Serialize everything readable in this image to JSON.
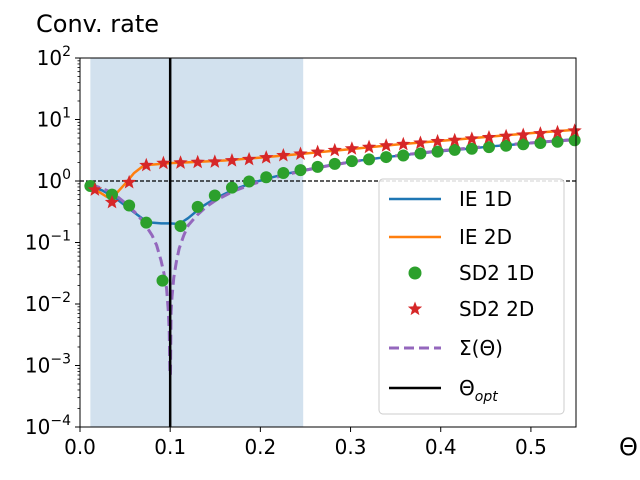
{
  "chart_data": {
    "type": "line",
    "title": "Conv. rate",
    "xlabel": "Θ",
    "ylabel": "",
    "xlim": [
      0.0,
      0.55
    ],
    "ylim": [
      0.0001,
      100
    ],
    "yscale": "log",
    "x_ticks": [
      {
        "value": 0.0,
        "label": "0.0"
      },
      {
        "value": 0.1,
        "label": "0.1"
      },
      {
        "value": 0.2,
        "label": "0.2"
      },
      {
        "value": 0.3,
        "label": "0.3"
      },
      {
        "value": 0.4,
        "label": "0.4"
      },
      {
        "value": 0.5,
        "label": "0.5"
      }
    ],
    "y_ticks": [
      {
        "value": 100,
        "base": "10",
        "exp": "2"
      },
      {
        "value": 10,
        "base": "10",
        "exp": "1"
      },
      {
        "value": 1,
        "base": "10",
        "exp": "0"
      },
      {
        "value": 0.1,
        "base": "10",
        "exp": "−1"
      },
      {
        "value": 0.01,
        "base": "10",
        "exp": "−2"
      },
      {
        "value": 0.001,
        "base": "10",
        "exp": "−3"
      },
      {
        "value": 0.0001,
        "base": "10",
        "exp": "−4"
      }
    ],
    "shaded_region": {
      "x_start": 0.0115,
      "x_end": 0.2475,
      "color": "#d2e1ee"
    },
    "reference_line_y": 1.0,
    "vertical_line_x": 0.1,
    "series": [
      {
        "name": "IE 1D",
        "kind": "line",
        "color": "#1f77b4",
        "x": [
          0.0115,
          0.025,
          0.04,
          0.055,
          0.07,
          0.08,
          0.09,
          0.1,
          0.11,
          0.12,
          0.135,
          0.15,
          0.17,
          0.19,
          0.21,
          0.23,
          0.25,
          0.28,
          0.31,
          0.34,
          0.37,
          0.4,
          0.43,
          0.46,
          0.49,
          0.52,
          0.55
        ],
        "y": [
          0.83,
          0.7,
          0.52,
          0.35,
          0.24,
          0.21,
          0.205,
          0.205,
          0.2,
          0.25,
          0.38,
          0.52,
          0.72,
          0.92,
          1.12,
          1.32,
          1.52,
          1.85,
          2.15,
          2.45,
          2.75,
          3.05,
          3.35,
          3.7,
          4.0,
          4.4,
          4.8
        ]
      },
      {
        "name": "IE 2D",
        "kind": "line",
        "color": "#ff7f0e",
        "x": [
          0.0115,
          0.02,
          0.03,
          0.04,
          0.05,
          0.06,
          0.07,
          0.08,
          0.1,
          0.13,
          0.16,
          0.2,
          0.25,
          0.3,
          0.35,
          0.4,
          0.45,
          0.5,
          0.55
        ],
        "y": [
          0.8,
          0.68,
          0.55,
          0.62,
          0.9,
          1.35,
          1.75,
          1.85,
          1.95,
          2.05,
          2.15,
          2.4,
          2.8,
          3.3,
          3.9,
          4.5,
          5.2,
          6.0,
          6.8
        ]
      },
      {
        "name": "SD2 1D",
        "kind": "markers",
        "marker": "circle",
        "color": "#2ca02c",
        "x": [
          0.0115,
          0.0355,
          0.0545,
          0.0735,
          0.0915,
          0.1115,
          0.1305,
          0.1495,
          0.1685,
          0.1875,
          0.2065,
          0.2255,
          0.2445,
          0.2635,
          0.2825,
          0.3015,
          0.3205,
          0.3395,
          0.3585,
          0.3775,
          0.3965,
          0.4155,
          0.4345,
          0.4535,
          0.4725,
          0.4915,
          0.5105,
          0.5295,
          0.5485
        ],
        "y": [
          0.83,
          0.6,
          0.4,
          0.21,
          0.024,
          0.185,
          0.38,
          0.58,
          0.78,
          0.98,
          1.15,
          1.35,
          1.5,
          1.7,
          1.9,
          2.1,
          2.25,
          2.45,
          2.6,
          2.8,
          3.0,
          3.2,
          3.35,
          3.55,
          3.75,
          3.95,
          4.15,
          4.35,
          4.6
        ]
      },
      {
        "name": "SD2 2D",
        "kind": "markers",
        "marker": "star",
        "color": "#d62728",
        "x": [
          0.0165,
          0.0355,
          0.0545,
          0.0735,
          0.0925,
          0.1115,
          0.1305,
          0.1495,
          0.1685,
          0.1875,
          0.2065,
          0.2255,
          0.2445,
          0.2635,
          0.2825,
          0.3015,
          0.3205,
          0.3395,
          0.3585,
          0.3775,
          0.3965,
          0.4155,
          0.4345,
          0.4535,
          0.4725,
          0.4915,
          0.5105,
          0.5295,
          0.5485
        ],
        "y": [
          0.72,
          0.45,
          0.95,
          1.8,
          1.95,
          1.98,
          2.02,
          2.05,
          2.15,
          2.25,
          2.4,
          2.6,
          2.75,
          2.95,
          3.15,
          3.35,
          3.55,
          3.75,
          3.95,
          4.15,
          4.4,
          4.6,
          4.85,
          5.1,
          5.35,
          5.6,
          5.9,
          6.2,
          6.55
        ]
      },
      {
        "name": "Σ(Θ)",
        "kind": "dashed",
        "color": "#9467bd",
        "x": [
          0.0115,
          0.02,
          0.03,
          0.04,
          0.05,
          0.06,
          0.07,
          0.08,
          0.085,
          0.09,
          0.093,
          0.096,
          0.098,
          0.099,
          0.0997,
          0.1003,
          0.101,
          0.102,
          0.104,
          0.107,
          0.11,
          0.115,
          0.12,
          0.13,
          0.14,
          0.15,
          0.17,
          0.19,
          0.21,
          0.23,
          0.25,
          0.28,
          0.31,
          0.34,
          0.37,
          0.4,
          0.43,
          0.46,
          0.49,
          0.52,
          0.55
        ],
        "y": [
          0.88,
          0.8,
          0.7,
          0.58,
          0.44,
          0.32,
          0.22,
          0.13,
          0.09,
          0.05,
          0.032,
          0.018,
          0.0075,
          0.0035,
          0.0007,
          0.0007,
          0.0075,
          0.013,
          0.027,
          0.05,
          0.08,
          0.13,
          0.19,
          0.28,
          0.38,
          0.48,
          0.68,
          0.88,
          1.08,
          1.28,
          1.5,
          1.82,
          2.14,
          2.46,
          2.78,
          3.1,
          3.42,
          3.74,
          4.06,
          4.38,
          4.7
        ]
      },
      {
        "name": "Θ",
        "name_subscript": "opt",
        "kind": "vline",
        "color": "#000000"
      }
    ],
    "legend": {
      "position": "bottom-right"
    }
  }
}
